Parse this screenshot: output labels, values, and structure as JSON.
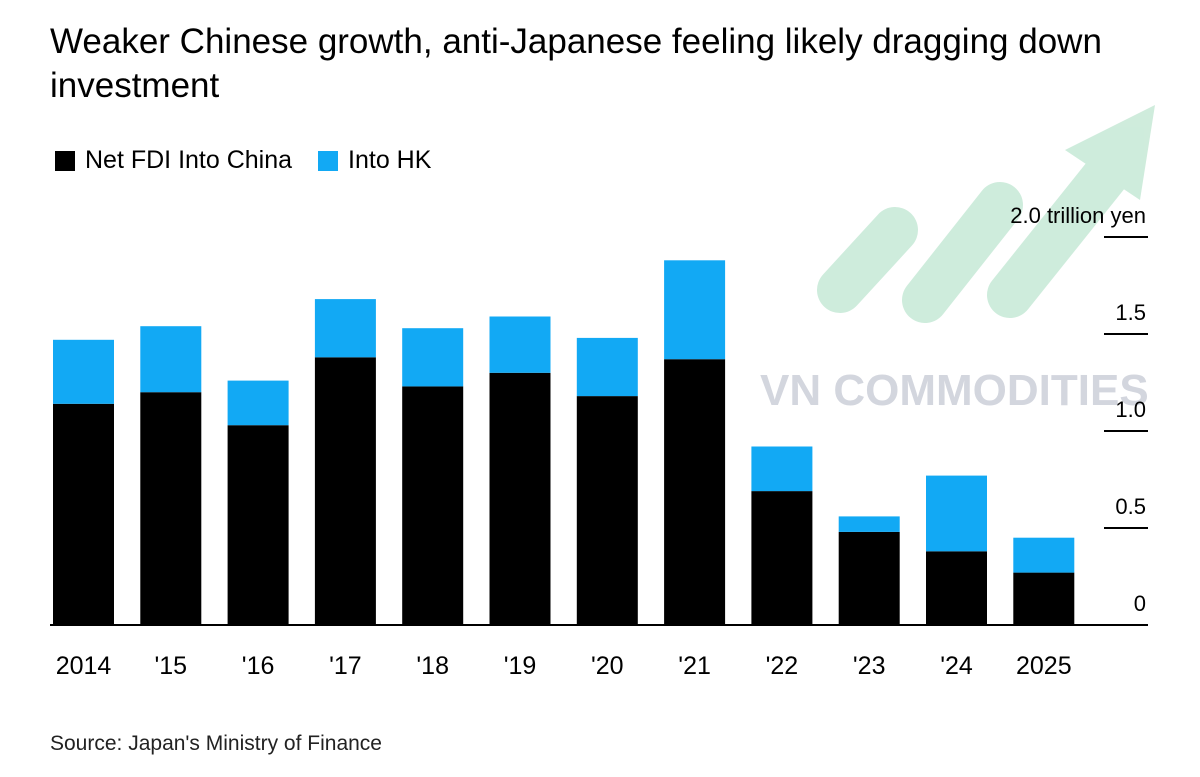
{
  "colors": {
    "china": "#000000",
    "hk": "#12a9f4",
    "watermark_green": "#a7ddc0",
    "watermark_text": "#c9ccd6"
  },
  "title": "Weaker Chinese growth, anti-Japanese feeling likely dragging down investment",
  "source": "Source: Japan's Ministry of Finance",
  "watermark": "VN COMMODITIES",
  "chart_data": {
    "type": "bar",
    "stacked": true,
    "title": "Weaker Chinese growth, anti-Japanese feeling likely dragging down investment",
    "unit": "trillion yen",
    "categories": [
      "2014",
      "'15",
      "'16",
      "'17",
      "'18",
      "'19",
      "'20",
      "'21",
      "'22",
      "'23",
      "'24",
      "2025"
    ],
    "series": [
      {
        "name": "Net FDI Into China",
        "values": [
          1.14,
          1.2,
          1.03,
          1.38,
          1.23,
          1.3,
          1.18,
          1.37,
          0.69,
          0.48,
          0.38,
          0.27
        ]
      },
      {
        "name": "Into HK",
        "values": [
          0.33,
          0.34,
          0.23,
          0.3,
          0.3,
          0.29,
          0.3,
          0.51,
          0.23,
          0.08,
          0.39,
          0.18
        ]
      }
    ],
    "y_ticks": [
      "0",
      "0.5",
      "1.0",
      "1.5",
      "2.0 trillion yen"
    ],
    "y_tick_values": [
      0,
      0.5,
      1.0,
      1.5,
      2.0
    ],
    "ylim": [
      0,
      2.0
    ],
    "axis_side": "right",
    "legend_position": "top-left",
    "grid": false
  }
}
